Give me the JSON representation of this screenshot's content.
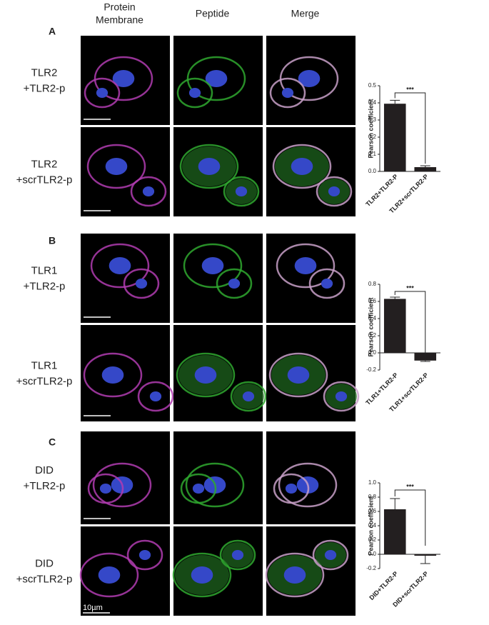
{
  "figure": {
    "column_headers": [
      [
        "Protein",
        "Membrane"
      ],
      [
        "Peptide"
      ],
      [
        "Merge"
      ]
    ],
    "panels": [
      {
        "letter": "A",
        "rows": [
          [
            "TLR2",
            "+TLR2-p"
          ],
          [
            "TLR2",
            "+scrTLR2-p"
          ]
        ]
      },
      {
        "letter": "B",
        "rows": [
          [
            "TLR1",
            "+TLR2-p"
          ],
          [
            "TLR1",
            "+scrTLR2-p"
          ]
        ]
      },
      {
        "letter": "C",
        "rows": [
          [
            "DID",
            "+TLR2-p"
          ],
          [
            "DID",
            "+scrTLR2-p"
          ]
        ]
      }
    ],
    "scale_bar_label": "10µm"
  },
  "chart_data": [
    {
      "type": "bar",
      "ylabel": "Pearson coefficient",
      "categories": [
        "TLR2+TLR2-P",
        "TLR2+scrTLR2-P"
      ],
      "values": [
        0.395,
        0.025
      ],
      "errors": [
        0.02,
        0.008
      ],
      "color": "#231f20",
      "ylim": [
        0,
        0.5
      ],
      "yticks": [
        {
          "value": 0,
          "label": "0.0"
        },
        0.1,
        0.2,
        0.3,
        0.4,
        0.5
      ],
      "annotation": "***"
    },
    {
      "type": "bar",
      "ylabel": "Pearson coefficient",
      "categories": [
        "TLR1+TLR2-P",
        "TLR1+scrTLR2-P"
      ],
      "values": [
        0.63,
        -0.09
      ],
      "errors": [
        0.02,
        0.01
      ],
      "color": "#231f20",
      "ylim": [
        -0.2,
        0.8
      ],
      "yticks": [
        -0.2,
        {
          "value": 0,
          "label": "0.0"
        },
        0.2,
        0.4,
        0.6,
        0.8
      ],
      "annotation": "***"
    },
    {
      "type": "bar",
      "ylabel": "Pearson coefficient",
      "categories": [
        "DID+TLR2-P",
        "DID+scrTLR2-P"
      ],
      "values": [
        0.63,
        -0.02
      ],
      "errors": [
        0.15,
        0.11
      ],
      "color": "#231f20",
      "ylim": [
        -0.2,
        1.0
      ],
      "yticks": [
        -0.2,
        {
          "value": 0,
          "label": "0.0"
        },
        0.2,
        0.4,
        0.6,
        0.8,
        {
          "value": 1,
          "label": "1.0"
        }
      ],
      "annotation": "***"
    }
  ]
}
